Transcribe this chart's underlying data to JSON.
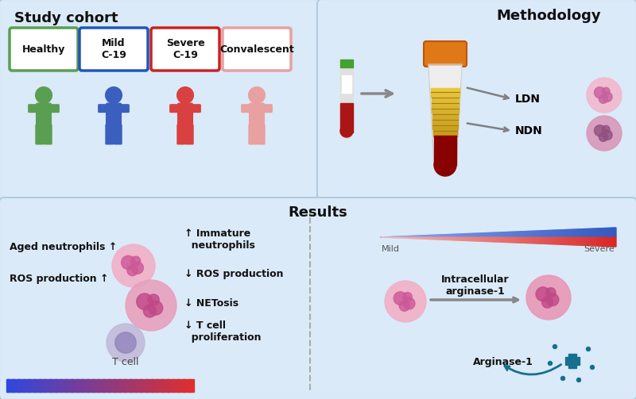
{
  "outer_bg": "#ccdff0",
  "panel_bg": "#daeaf8",
  "title_cohort": "Study cohort",
  "title_method": "Methodology",
  "title_results": "Results",
  "cohort_labels": [
    "Healthy",
    "Mild\nC-19",
    "Severe\nC-19",
    "Convalescent"
  ],
  "cohort_colors": [
    "#5a9e52",
    "#3a5fbf",
    "#d94040",
    "#e8a0a0"
  ],
  "cohort_box_colors": [
    "#5a9e52",
    "#2255bb",
    "#cc2222",
    "#e8a0a0"
  ],
  "ldn_label": "LDN",
  "ndn_label": "NDN",
  "results_left_labels": [
    "Aged neutrophils ↑",
    "ROS production ↑"
  ],
  "results_mid_labels": [
    "↑ Immature\n  neutrophils",
    "↓ ROS production",
    "↓ NETosis",
    "↓ T cell\n  proliferation"
  ],
  "tcell_label": "T cell",
  "mild_label": "Mild",
  "severe_label": "Severe",
  "intracell_label": "Intracellular\narginase-1",
  "arginase_label": "Arginase-1",
  "font_color": "#111111",
  "arrow_color": "#808080"
}
